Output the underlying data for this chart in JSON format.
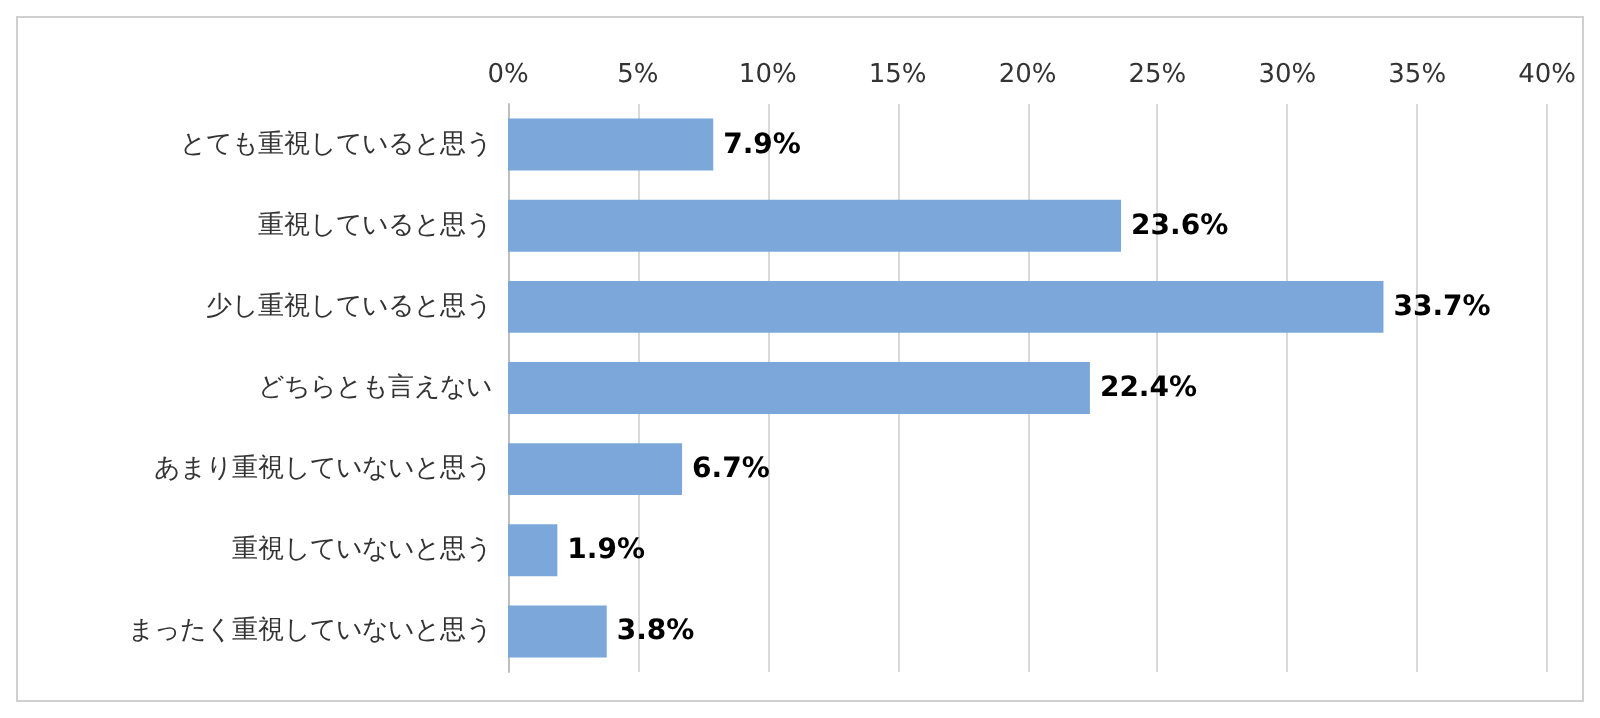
{
  "chart_data": {
    "type": "bar",
    "orientation": "horizontal",
    "categories": [
      "とても重視していると思う",
      "重視していると思う",
      "少し重視していると思う",
      "どちらとも言えない",
      "あまり重視していないと思う",
      "重視していないと思う",
      "まったく重視していないと思う"
    ],
    "values": [
      7.9,
      23.6,
      33.7,
      22.4,
      6.7,
      1.9,
      3.8
    ],
    "value_labels": [
      "7.9%",
      "23.6%",
      "33.7%",
      "22.4%",
      "6.7%",
      "1.9%",
      "3.8%"
    ],
    "color": "#7ba7db",
    "xlim": [
      0,
      40
    ],
    "xticks": [
      {
        "value": 0,
        "label": "0%"
      },
      {
        "value": 5,
        "label": "5%"
      },
      {
        "value": 10,
        "label": "10%"
      },
      {
        "value": 15,
        "label": "15%"
      },
      {
        "value": 20,
        "label": "20%"
      },
      {
        "value": 25,
        "label": "25%"
      },
      {
        "value": 30,
        "label": "30%"
      },
      {
        "value": 35,
        "label": "35%"
      },
      {
        "value": 40,
        "label": "40%"
      }
    ],
    "grid": true
  }
}
